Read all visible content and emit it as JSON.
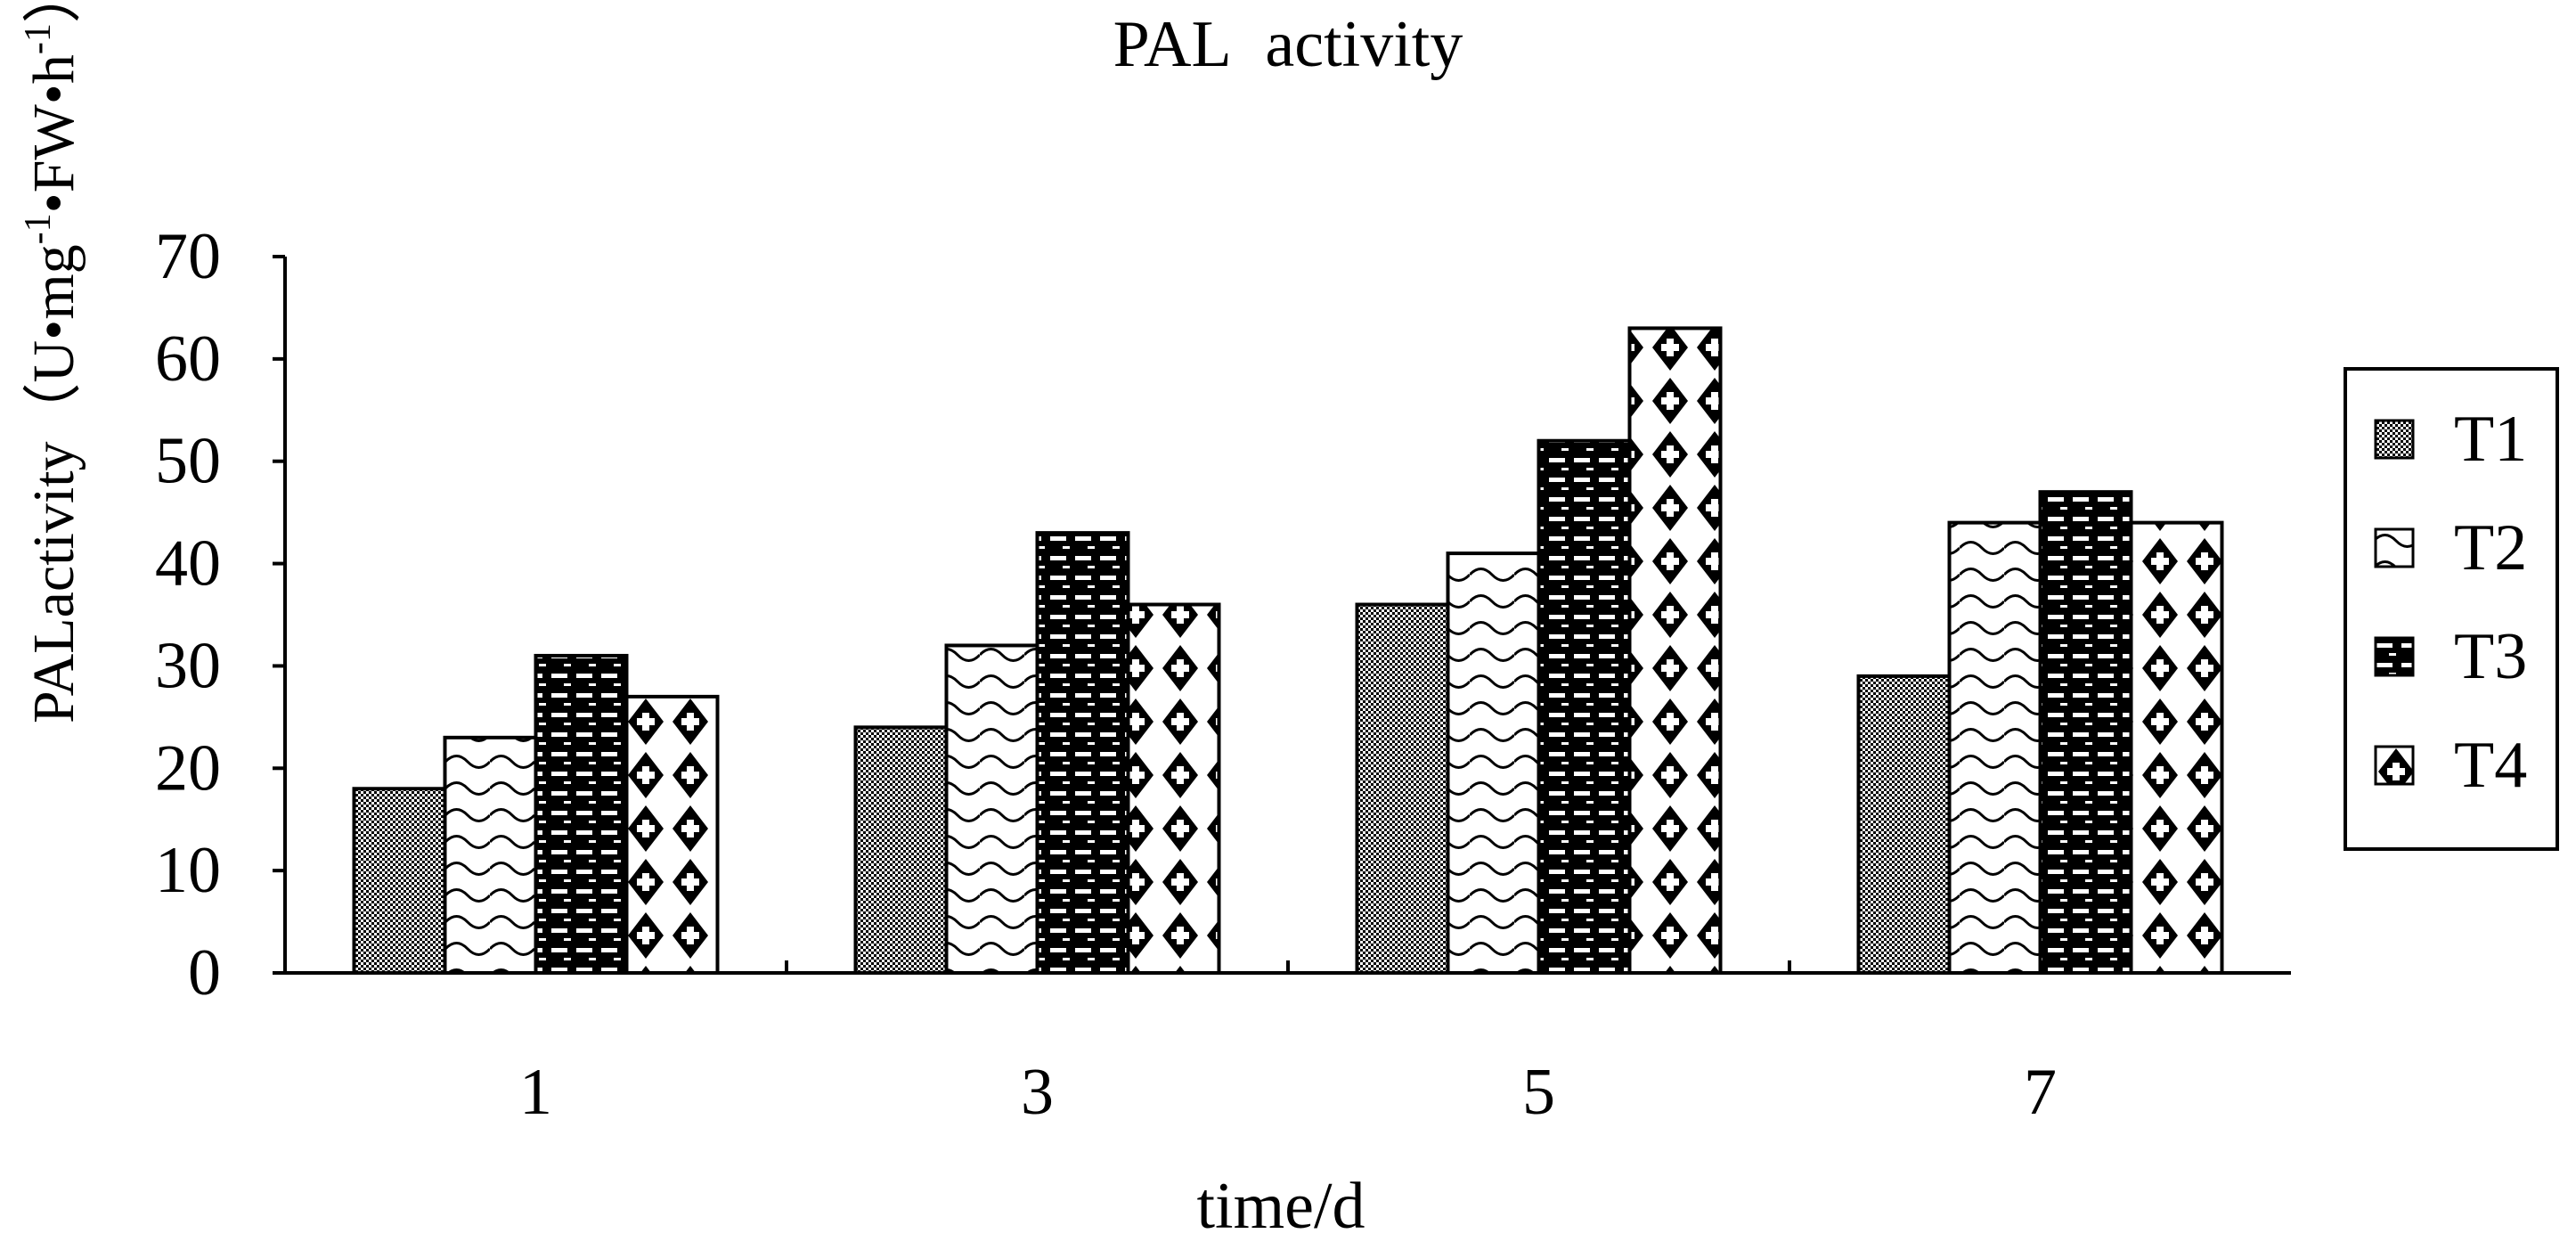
{
  "chart_data": {
    "type": "bar",
    "title": "PAL activity",
    "xlabel": "time/d",
    "ylabel": "PALactivity（U•mg⁻¹•FW•h⁻¹）",
    "ylabel_parts": {
      "main": "PALactivity（U•mg",
      "sup1": "-1",
      "mid": "•FW•h",
      "sup2": "-1",
      "end": "）"
    },
    "categories": [
      "1",
      "3",
      "5",
      "7"
    ],
    "ylim": [
      0,
      70
    ],
    "yticks": [
      0,
      10,
      20,
      30,
      40,
      50,
      60,
      70
    ],
    "grid": false,
    "legend_position": "right",
    "series": [
      {
        "name": "T1",
        "values": [
          18,
          24,
          36,
          29
        ],
        "pattern": "checker"
      },
      {
        "name": "T2",
        "values": [
          23,
          32,
          41,
          44
        ],
        "pattern": "wave"
      },
      {
        "name": "T3",
        "values": [
          31,
          43,
          52,
          47
        ],
        "pattern": "dash-dark"
      },
      {
        "name": "T4",
        "values": [
          27,
          36,
          63,
          44
        ],
        "pattern": "diamond"
      }
    ]
  }
}
